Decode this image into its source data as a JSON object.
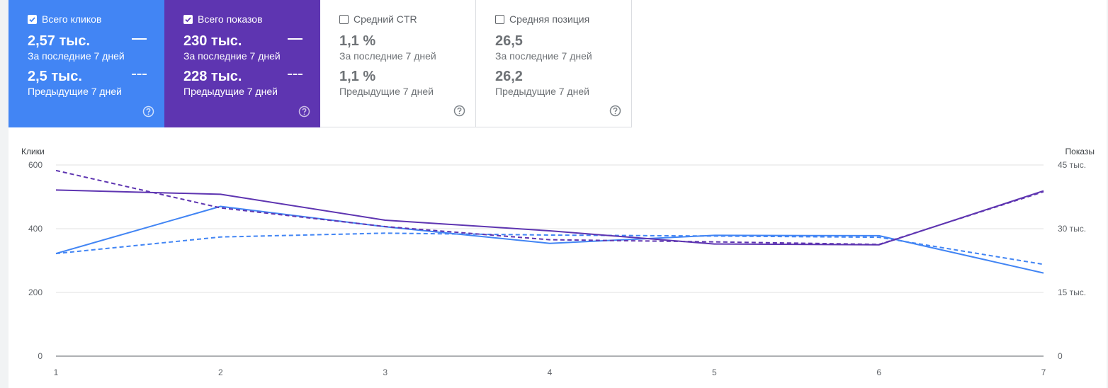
{
  "cards": [
    {
      "title": "Всего кликов",
      "checked": true,
      "current_value": "2,57 тыс.",
      "current_label": "За последние 7 дней",
      "previous_value": "2,5 тыс.",
      "previous_label": "Предыдущие 7 дней",
      "color": "#4285f4"
    },
    {
      "title": "Всего показов",
      "checked": true,
      "current_value": "230 тыс.",
      "current_label": "За последние 7 дней",
      "previous_value": "228 тыс.",
      "previous_label": "Предыдущие 7 дней",
      "color": "#5e35b1"
    },
    {
      "title": "Средний CTR",
      "checked": false,
      "current_value": "1,1 %",
      "current_label": "За последние 7 дней",
      "previous_value": "1,1 %",
      "previous_label": "Предыдущие 7 дней"
    },
    {
      "title": "Средняя позиция",
      "checked": false,
      "current_value": "26,5",
      "current_label": "За последние 7 дней",
      "previous_value": "26,2",
      "previous_label": "Предыдущие 7 дней"
    }
  ],
  "chart_data": {
    "type": "line",
    "x": [
      1,
      2,
      3,
      4,
      5,
      6,
      7
    ],
    "y_left": {
      "label": "Клики",
      "ticks": [
        0,
        200,
        400,
        600
      ],
      "tick_labels": [
        "0",
        "200",
        "400",
        "600"
      ],
      "ylim": [
        0,
        600
      ]
    },
    "y_right": {
      "label": "Показы",
      "ticks": [
        0,
        15000,
        30000,
        45000
      ],
      "tick_labels": [
        "0",
        "15 тыс.",
        "30 тыс.",
        "45 тыс."
      ],
      "ylim": [
        0,
        45000
      ]
    },
    "grid": true,
    "series": [
      {
        "axis": "left",
        "style": "solid",
        "color": "#4285f4",
        "values": [
          322,
          470,
          406,
          354,
          379,
          378,
          261
        ]
      },
      {
        "axis": "left",
        "style": "dashed",
        "color": "#4285f4",
        "values": [
          322,
          374,
          386,
          380,
          377,
          373,
          288
        ]
      },
      {
        "axis": "right",
        "style": "solid",
        "color": "#5e35b1",
        "values": [
          39100,
          38100,
          32000,
          29500,
          26400,
          26200,
          38900
        ]
      },
      {
        "axis": "right",
        "style": "dashed",
        "color": "#5e35b1",
        "values": [
          43700,
          34900,
          30500,
          27400,
          26900,
          26300,
          38700
        ]
      }
    ]
  }
}
